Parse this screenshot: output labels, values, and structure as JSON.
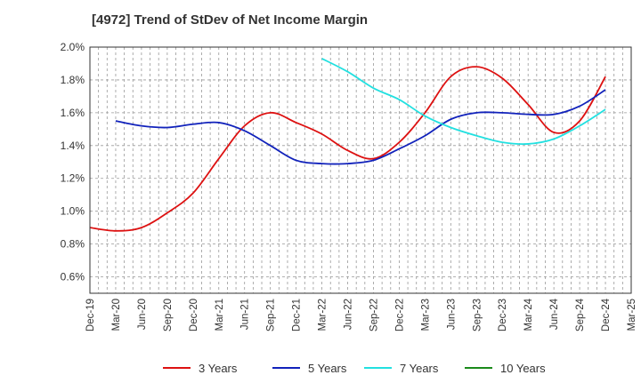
{
  "chart_data": {
    "type": "line",
    "title": "[4972]  Trend of StDev of Net Income Margin",
    "xlabel": "",
    "ylabel": "",
    "ylim": [
      0.5,
      2.0
    ],
    "y_ticks": [
      "2.0%",
      "1.8%",
      "1.6%",
      "1.4%",
      "1.2%",
      "1.0%",
      "0.8%",
      "0.6%"
    ],
    "y_tick_values": [
      2.0,
      1.8,
      1.6,
      1.4,
      1.2,
      1.0,
      0.8,
      0.6
    ],
    "x": [
      "Dec-19",
      "Mar-20",
      "Jun-20",
      "Sep-20",
      "Dec-20",
      "Mar-21",
      "Jun-21",
      "Sep-21",
      "Dec-21",
      "Mar-22",
      "Jun-22",
      "Sep-22",
      "Dec-22",
      "Mar-23",
      "Jun-23",
      "Sep-23",
      "Dec-23",
      "Mar-24",
      "Jun-24",
      "Sep-24",
      "Dec-24",
      "Mar-25"
    ],
    "grid": true,
    "legend_position": "bottom",
    "series": [
      {
        "name": "3 Years",
        "color": "#dd1111",
        "values": [
          0.9,
          0.88,
          0.9,
          0.99,
          1.11,
          1.32,
          1.52,
          1.6,
          1.54,
          1.47,
          1.37,
          1.32,
          1.42,
          1.6,
          1.82,
          1.88,
          1.81,
          1.65,
          1.48,
          1.55,
          1.82,
          null
        ]
      },
      {
        "name": "5 Years",
        "color": "#1122bb",
        "values": [
          null,
          1.55,
          1.52,
          1.51,
          1.53,
          1.54,
          1.49,
          1.4,
          1.31,
          1.29,
          1.29,
          1.31,
          1.38,
          1.46,
          1.56,
          1.6,
          1.6,
          1.59,
          1.59,
          1.64,
          1.74,
          null
        ]
      },
      {
        "name": "7 Years",
        "color": "#22e0e0",
        "values": [
          null,
          null,
          null,
          null,
          null,
          null,
          null,
          null,
          null,
          1.93,
          1.85,
          1.75,
          1.68,
          1.58,
          1.51,
          1.46,
          1.42,
          1.41,
          1.44,
          1.52,
          1.62,
          null
        ]
      },
      {
        "name": "10 Years",
        "color": "#1a8a1a",
        "values": [
          null,
          null,
          null,
          null,
          null,
          null,
          null,
          null,
          null,
          null,
          null,
          null,
          null,
          null,
          null,
          null,
          null,
          null,
          null,
          null,
          null,
          null
        ]
      }
    ]
  }
}
